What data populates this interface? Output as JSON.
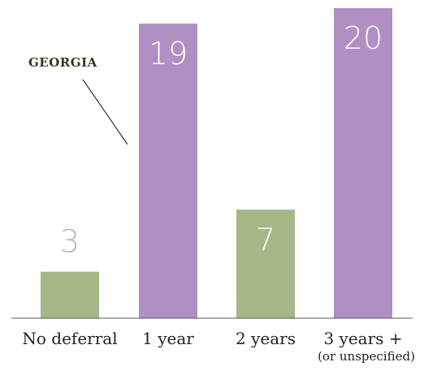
{
  "chart_data": {
    "type": "bar",
    "categories": [
      "No deferral",
      "1 year",
      "2 years",
      "3 years +"
    ],
    "category_sublabels": [
      "",
      "",
      "",
      "(or unspecified)"
    ],
    "values": [
      3,
      19,
      7,
      20
    ],
    "bar_colors": [
      "#a3b886",
      "#b08fc4",
      "#a3b886",
      "#b08fc4"
    ],
    "ylim": [
      0,
      20
    ],
    "grid": false,
    "title": "",
    "xlabel": "",
    "ylabel": "",
    "annotations": [
      {
        "text": "GEORGIA",
        "target_category": "1 year",
        "color": "#2f3a1f"
      }
    ],
    "value_label_color": "#ffffff",
    "value_label_outside_color": "#b5b5b5",
    "axis_color": "#555555"
  }
}
